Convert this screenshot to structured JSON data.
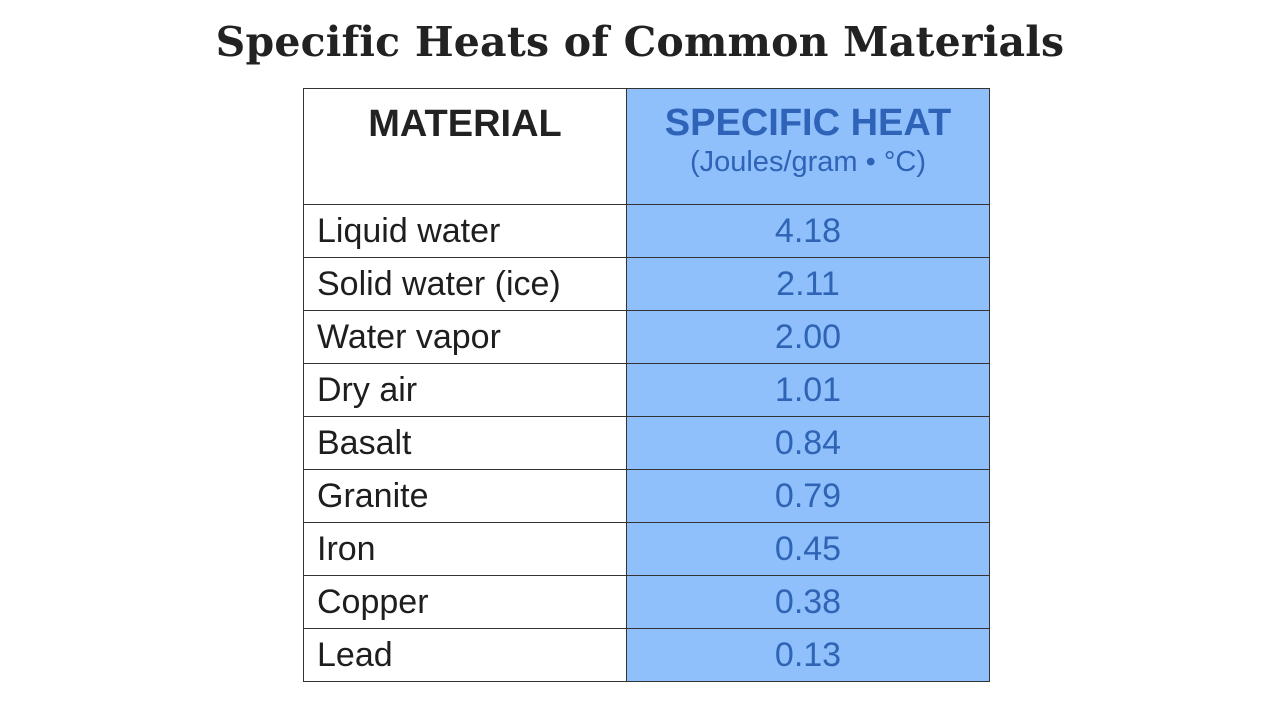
{
  "title": "Specific Heats of Common Materials",
  "table": {
    "header_material": "MATERIAL",
    "header_value": "SPECIFIC HEAT",
    "header_unit": "(Joules/gram • °C)",
    "rows": [
      {
        "material": "Liquid water",
        "value": "4.18"
      },
      {
        "material": "Solid water (ice)",
        "value": "2.11"
      },
      {
        "material": "Water vapor",
        "value": "2.00"
      },
      {
        "material": "Dry air",
        "value": "1.01"
      },
      {
        "material": "Basalt",
        "value": "0.84"
      },
      {
        "material": "Granite",
        "value": "0.79"
      },
      {
        "material": "Iron",
        "value": "0.45"
      },
      {
        "material": "Copper",
        "value": "0.38"
      },
      {
        "material": "Lead",
        "value": "0.13"
      }
    ]
  },
  "colors": {
    "value_column_bg": "#8fc0fb",
    "value_text": "#2f64b5",
    "header_value_text": "#2e63b8",
    "border": "#333333"
  }
}
